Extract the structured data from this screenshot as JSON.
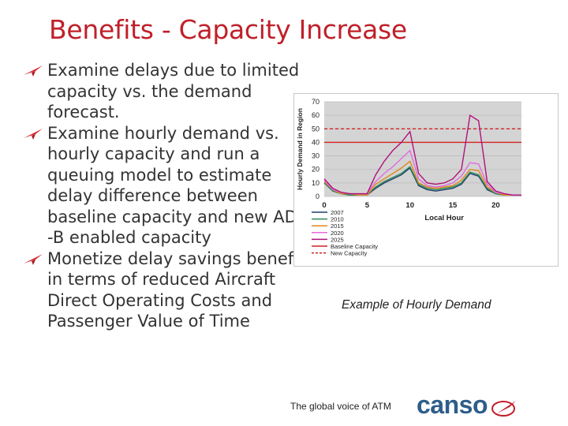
{
  "slide": {
    "title": "Benefits - Capacity Increase",
    "bullets": [
      "Examine delays due to limited capacity vs. the demand forecast.",
      "Examine hourly demand vs. hourly capacity and run a queuing model to estimate delay difference between baseline capacity and new ADS -B enabled capacity",
      "Monetize delay savings benefit in terms of reduced Aircraft Direct Operating Costs and Passenger Value of Time"
    ],
    "caption": "Example of Hourly Demand",
    "tagline": "The global voice of ATM",
    "logo_text": "canso"
  },
  "colors": {
    "title": "#c0202a",
    "bullet_arrow": "#d7262e",
    "logo_blue": "#2e5d8a"
  },
  "chart_data": {
    "type": "line",
    "xlabel": "Local Hour",
    "ylabel": "Hourly Demand in Region",
    "xlim": [
      0,
      23
    ],
    "ylim": [
      0,
      70
    ],
    "xticks": [
      0,
      5,
      10,
      15,
      20
    ],
    "yticks": [
      0,
      10,
      20,
      30,
      40,
      50,
      60,
      70
    ],
    "grid": true,
    "legend_position": "bottom-left",
    "x": [
      0,
      1,
      2,
      3,
      4,
      5,
      6,
      7,
      8,
      9,
      10,
      11,
      12,
      13,
      14,
      15,
      16,
      17,
      18,
      19,
      20,
      21,
      22,
      23
    ],
    "series": [
      {
        "name": "2007",
        "color": "#1f3f6e",
        "values": [
          10,
          4,
          2,
          1,
          1,
          1,
          6,
          10,
          13,
          16,
          21,
          8,
          5,
          4,
          5,
          6,
          9,
          17,
          15,
          5,
          2,
          1,
          1,
          1
        ]
      },
      {
        "name": "2010",
        "color": "#2e8b57",
        "values": [
          10,
          4,
          2,
          1,
          1,
          1,
          7,
          11,
          14,
          17,
          22,
          9,
          6,
          5,
          6,
          7,
          10,
          18,
          16,
          6,
          2,
          1,
          1,
          1
        ]
      },
      {
        "name": "2015",
        "color": "#e08a1e",
        "values": [
          11,
          5,
          2,
          2,
          1,
          1,
          9,
          13,
          17,
          21,
          26,
          10,
          7,
          6,
          7,
          8,
          12,
          20,
          19,
          7,
          3,
          1,
          1,
          1
        ]
      },
      {
        "name": "2020",
        "color": "#e36ae0",
        "values": [
          12,
          5,
          3,
          2,
          2,
          2,
          11,
          17,
          22,
          28,
          34,
          13,
          8,
          7,
          8,
          10,
          15,
          25,
          24,
          9,
          3,
          2,
          1,
          1
        ]
      },
      {
        "name": "2025",
        "color": "#b0127a",
        "values": [
          13,
          6,
          3,
          2,
          2,
          2,
          16,
          26,
          34,
          40,
          48,
          17,
          10,
          9,
          10,
          13,
          20,
          60,
          56,
          11,
          4,
          2,
          1,
          1
        ]
      }
    ],
    "reference_lines": [
      {
        "name": "Baseline Capacity",
        "value": 40,
        "color": "#d42020",
        "style": "solid"
      },
      {
        "name": "New Capacity",
        "value": 50,
        "color": "#d42020",
        "style": "dashed"
      }
    ]
  }
}
